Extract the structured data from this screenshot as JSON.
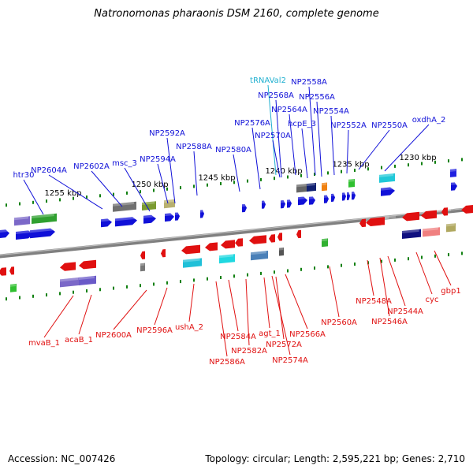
{
  "title": "Natronomonas pharaonis DSM 2160, complete genome",
  "accession": "Accession: NC_007426",
  "summary": "Topology: circular; Length: 2,595,221 bp; Genes: 2,710",
  "scale_labels": [
    "1255 kbp",
    "1250 kbp",
    "1245 kbp",
    "1240 kbp",
    "1235 kbp",
    "1230 kbp"
  ],
  "colors": {
    "forward": "#1010d8",
    "reverse": "#e01010",
    "trna": "#20b0d0",
    "axis": "#808080",
    "tick": "#108010"
  },
  "top_labels": [
    "htr30",
    "NP2604A",
    "NP2602A",
    "msc_3",
    "NP2594A",
    "NP2592A",
    "NP2588A",
    "NP2580A",
    "NP2576A",
    "tRNAVal2",
    "NP2568A",
    "NP2570A",
    "NP2564A",
    "NP2558A",
    "hcpE_3",
    "NP2556A",
    "NP2554A",
    "NP2552A",
    "NP2550A",
    "oxdhA_2"
  ],
  "bottom_labels": [
    "mvaB_1",
    "acaB_1",
    "NP2600A",
    "NP2596A",
    "ushA_2",
    "NP2586A",
    "NP2584A",
    "NP2582A",
    "agt_1",
    "NP2574A",
    "NP2572A",
    "NP2566A",
    "NP2560A",
    "NP2548A",
    "NP2546A",
    "NP2544A",
    "cyc",
    "gbp1"
  ]
}
